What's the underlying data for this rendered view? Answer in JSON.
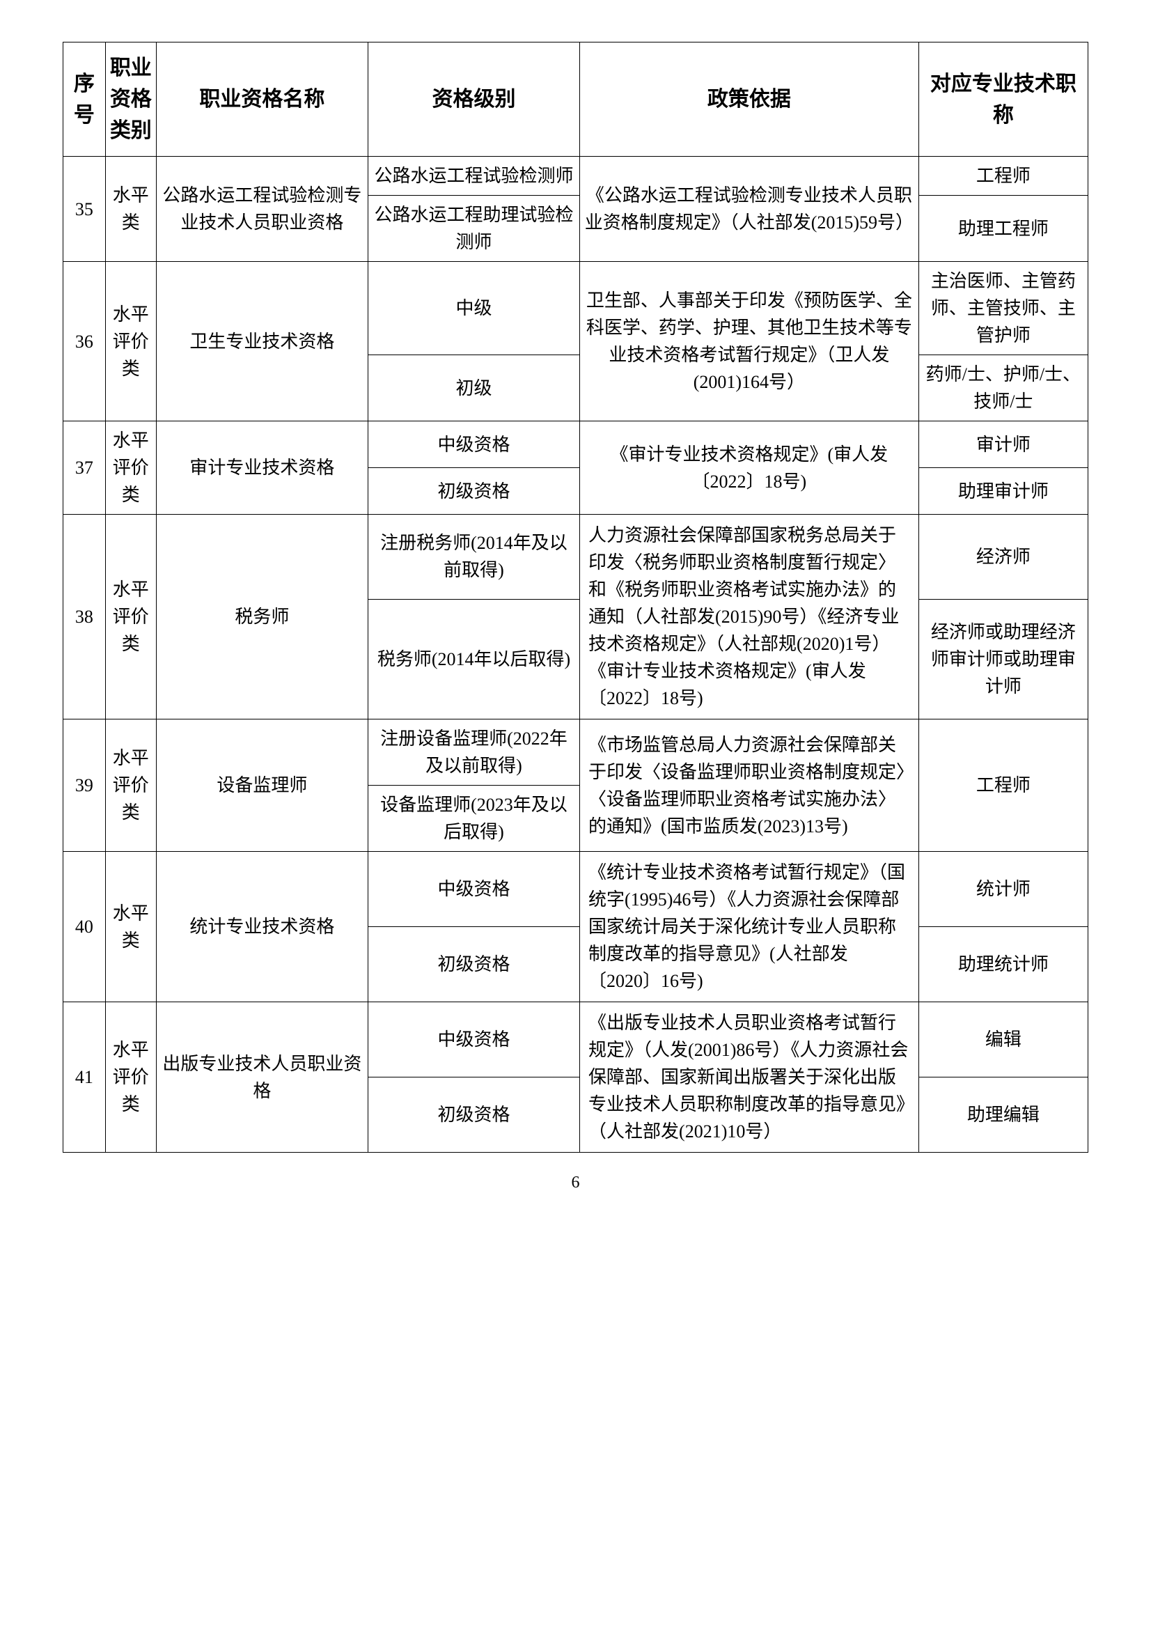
{
  "headers": {
    "seq": "序号",
    "category": "职业资格类别",
    "name": "职业资格名称",
    "level": "资格级别",
    "basis": "政策依据",
    "title": "对应专业技术职称"
  },
  "rows": [
    {
      "seq": "35",
      "category": "水平类",
      "name": "公路水运工程试验检测专业技术人员职业资格",
      "basis": "《公路水运工程试验检测专业技术人员职业资格制度规定》（人社部发(2015)59号）",
      "sub": [
        {
          "level": "公路水运工程试验检测师",
          "title": "工程师"
        },
        {
          "level": "公路水运工程助理试验检测师",
          "title": "助理工程师"
        }
      ]
    },
    {
      "seq": "36",
      "category": "水平评价类",
      "name": "卫生专业技术资格",
      "basis": "卫生部、人事部关于印发《预防医学、全科医学、药学、护理、其他卫生技术等专业技术资格考试暂行规定》（卫人发(2001)164号）",
      "sub": [
        {
          "level": "中级",
          "title": "主治医师、主管药师、主管技师、主管护师"
        },
        {
          "level": "初级",
          "title": "药师/士、护师/士、技师/士"
        }
      ]
    },
    {
      "seq": "37",
      "category": "水平评价类",
      "name": "审计专业技术资格",
      "basis": "《审计专业技术资格规定》(审人发〔2022〕18号)",
      "sub": [
        {
          "level": "中级资格",
          "title": "审计师"
        },
        {
          "level": "初级资格",
          "title": "助理审计师"
        }
      ]
    },
    {
      "seq": "38",
      "category": "水平评价类",
      "name": "税务师",
      "basis": "人力资源社会保障部国家税务总局关于印发〈税务师职业资格制度暂行规定〉和《税务师职业资格考试实施办法》的通知（人社部发(2015)90号）《经济专业技术资格规定》（人社部规(2020)1号）《审计专业技术资格规定》(审人发〔2022〕18号)",
      "sub": [
        {
          "level": "注册税务师(2014年及以前取得)",
          "title": "经济师"
        },
        {
          "level": "税务师(2014年以后取得)",
          "title": "经济师或助理经济师审计师或助理审计师"
        }
      ]
    },
    {
      "seq": "39",
      "category": "水平评价类",
      "name": "设备监理师",
      "basis": "《市场监管总局人力资源社会保障部关于印发〈设备监理师职业资格制度规定〉〈设备监理师职业资格考试实施办法〉的通知》(国市监质发(2023)13号)",
      "merged_title": "工程师",
      "sub": [
        {
          "level": "注册设备监理师(2022年及以前取得)"
        },
        {
          "level": "设备监理师(2023年及以后取得)"
        }
      ]
    },
    {
      "seq": "40",
      "category": "水平类",
      "name": "统计专业技术资格",
      "basis": "《统计专业技术资格考试暂行规定》（国统字(1995)46号）《人力资源社会保障部国家统计局关于深化统计专业人员职称制度改革的指导意见》(人社部发〔2020〕16号)",
      "sub": [
        {
          "level": "中级资格",
          "title": "统计师"
        },
        {
          "level": "初级资格",
          "title": "助理统计师"
        }
      ]
    },
    {
      "seq": "41",
      "category": "水平评价类",
      "name": "出版专业技术人员职业资格",
      "basis": "《出版专业技术人员职业资格考试暂行规定》（人发(2001)86号）《人力资源社会保障部、国家新闻出版署关于深化出版专业技术人员职称制度改革的指导意见》（人社部发(2021)10号）",
      "sub": [
        {
          "level": "中级资格",
          "title": "编辑"
        },
        {
          "level": "初级资格",
          "title": "助理编辑"
        }
      ]
    }
  ],
  "page_number": "6"
}
